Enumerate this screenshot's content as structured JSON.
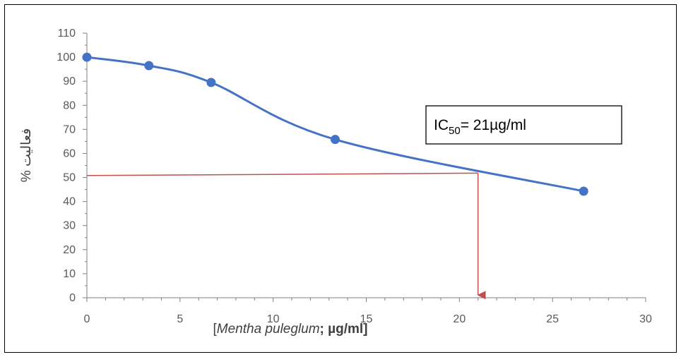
{
  "chart_data": {
    "type": "line",
    "title": "",
    "ylabel": "% فعالیت",
    "xlabel_parts": [
      {
        "text": "[",
        "italic": false,
        "bold": false
      },
      {
        "text": "Mentha puleglum",
        "italic": true,
        "bold": false
      },
      {
        "text": "; µg/ml]",
        "italic": false,
        "bold": true
      }
    ],
    "xlim": [
      0,
      30
    ],
    "ylim": [
      0,
      110
    ],
    "x_ticks": [
      0,
      5,
      10,
      15,
      20,
      25,
      30
    ],
    "y_ticks": [
      0,
      10,
      20,
      30,
      40,
      50,
      60,
      70,
      80,
      90,
      100,
      110
    ],
    "grid": false,
    "series": [
      {
        "x": [
          0,
          3.33,
          6.67,
          13.33,
          26.67
        ],
        "y": [
          100,
          96.5,
          89.5,
          65.8,
          44.3
        ],
        "color": "#4472C4",
        "smooth": true
      }
    ],
    "reference_lines": {
      "color": "#C0504D",
      "horizontal": {
        "from": [
          0,
          50.8
        ],
        "to": [
          21,
          51.8
        ]
      },
      "arrow": {
        "from": [
          21,
          51.8
        ],
        "to": [
          21,
          0.5
        ]
      }
    },
    "annotation": {
      "prefix": "IC",
      "subscript": "50",
      "suffix": "= 21µg/ml"
    }
  }
}
